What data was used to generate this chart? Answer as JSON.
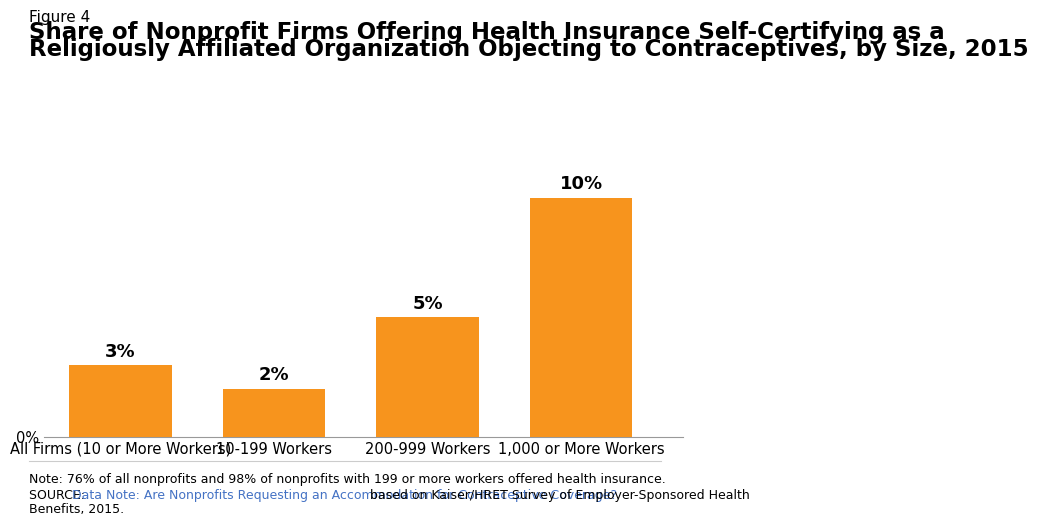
{
  "categories": [
    "All Firms (10 or More Workers)",
    "10-199 Workers",
    "200-999 Workers",
    "1,000 or More Workers"
  ],
  "values": [
    3,
    2,
    5,
    10
  ],
  "labels": [
    "3%",
    "2%",
    "5%",
    "10%"
  ],
  "bar_color": "#F7941D",
  "figure_label": "Figure 4",
  "title_line1": "Share of Nonprofit Firms Offering Health Insurance Self-Certifying as a",
  "title_line2": "Religiously Affiliated Organization Objecting to Contraceptives, by Size, 2015",
  "ylim": [
    0,
    12
  ],
  "ytick_labels": [
    "0%"
  ],
  "note_line1": "Note: 76% of all nonprofits and 98% of nonprofits with 199 or more workers offered health insurance.",
  "note_line2": "SOURCE: Data Note: Are Nonprofits Requesting an Accommodation for Contraceptive Coverage? based on Kaiser/HRET Survey of Employer-Sponsored Health",
  "note_line3": "Benefits, 2015.",
  "source_link_text": "Data Note: Are Nonprofits Requesting an Accommodation for Contraceptive Coverage?",
  "bg_color": "#FFFFFF",
  "label_fontsize": 13,
  "title_fontsize": 16.5,
  "figure_label_fontsize": 11,
  "axis_tick_fontsize": 10.5,
  "note_fontsize": 9
}
